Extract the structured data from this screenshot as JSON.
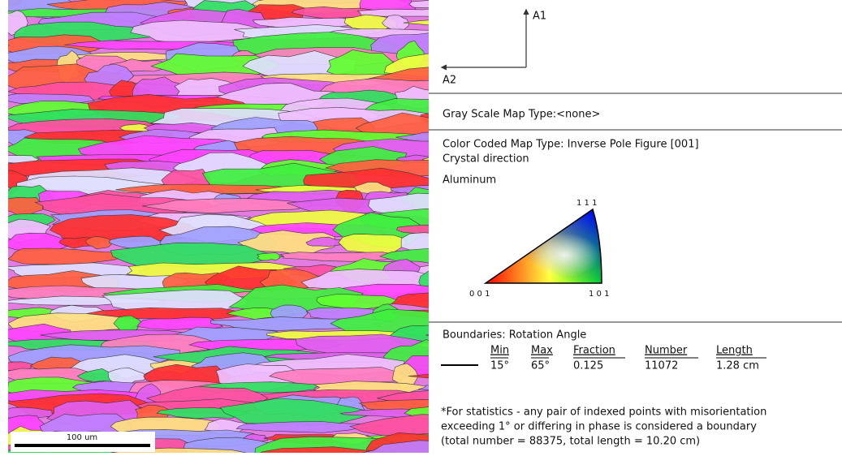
{
  "map": {
    "scale_bar": "100 um"
  },
  "axes": {
    "a1": "A1",
    "a2": "A2"
  },
  "gray_scale": "Gray Scale Map Type:<none>",
  "color_coded": {
    "title": "Color Coded Map Type: Inverse Pole Figure [001]",
    "subtitle": "Crystal direction",
    "phase": "Aluminum",
    "ipf": {
      "top": "1 1 1",
      "left": "0 0 1",
      "right": "1 0 1"
    }
  },
  "boundaries": {
    "title": "Boundaries: Rotation Angle",
    "table": {
      "headers": [
        "Min",
        "Max",
        "Fraction",
        "Number",
        "Length"
      ],
      "rows": [
        [
          "15°",
          "65°",
          "0.125",
          "11072",
          "1.28 cm"
        ]
      ]
    }
  },
  "note": [
    "*For statistics - any pair of indexed points with misorientation",
    "exceeding 1°  or differing in phase is considered a boundary",
    "(total number = 88375, total length = 10.20 cm)"
  ]
}
